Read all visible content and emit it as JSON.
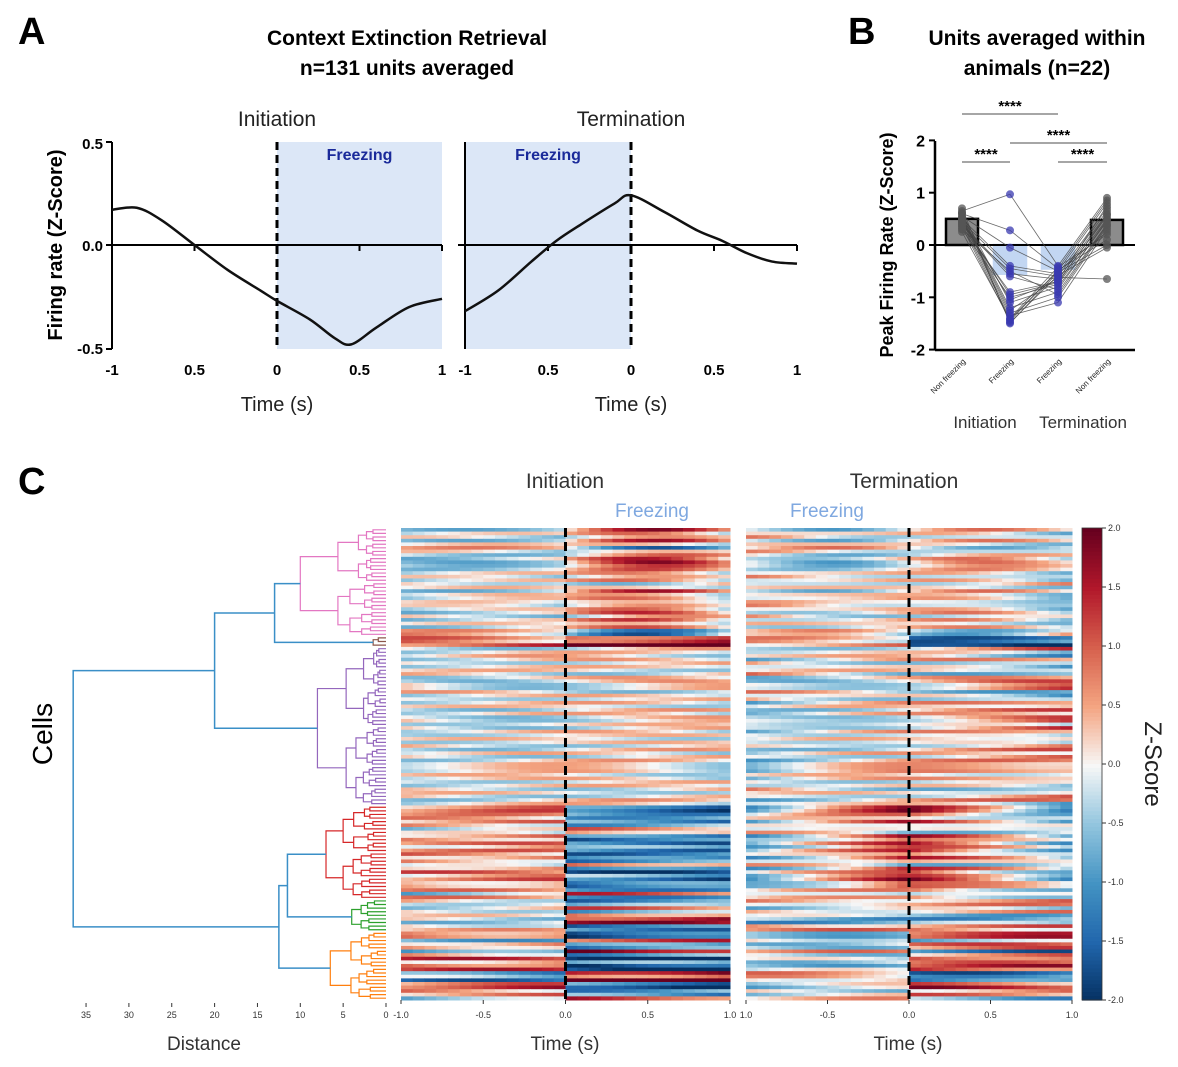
{
  "panel_labels": {
    "a": "A",
    "b": "B",
    "c": "C"
  },
  "chart_data": [
    {
      "type": "line",
      "panel": "A",
      "title": "Context Extinction Retrieval",
      "subtitle": "n=131 units averaged",
      "ylabel": "Firing rate (Z-Score)",
      "ylim": [
        -0.5,
        0.5
      ],
      "yticks": [
        "0.5",
        "0.0",
        "-0.5"
      ],
      "shade_label": "Freezing",
      "shade_color": "#dce7f7",
      "subplots": [
        {
          "name": "Initiation",
          "xlabel": "Time (s)",
          "xticks": [
            "-1",
            "0.5",
            "0",
            "0.5",
            "1"
          ],
          "shade": [
            0,
            1
          ],
          "x": [
            -1,
            -0.85,
            -0.7,
            -0.5,
            -0.3,
            -0.1,
            0,
            0.2,
            0.35,
            0.45,
            0.6,
            0.8,
            1
          ],
          "y": [
            0.17,
            0.18,
            0.12,
            0.0,
            -0.12,
            -0.22,
            -0.27,
            -0.36,
            -0.45,
            -0.48,
            -0.4,
            -0.3,
            -0.26
          ]
        },
        {
          "name": "Termination",
          "xlabel": "Time (s)",
          "xticks": [
            "-1",
            "0.5",
            "0",
            "0.5",
            "1"
          ],
          "shade": [
            -1,
            0
          ],
          "x": [
            -1,
            -0.8,
            -0.6,
            -0.45,
            -0.3,
            -0.1,
            0,
            0.2,
            0.4,
            0.55,
            0.7,
            0.85,
            1
          ],
          "y": [
            -0.32,
            -0.22,
            -0.08,
            0.02,
            0.1,
            0.2,
            0.24,
            0.16,
            0.07,
            0.02,
            -0.04,
            -0.08,
            -0.09
          ]
        }
      ]
    },
    {
      "type": "bar",
      "panel": "B",
      "title": "Units averaged within",
      "subtitle": "animals (n=22)",
      "ylabel": "Peak Firing Rate (Z-Score)",
      "ylim": [
        -2,
        2
      ],
      "yticks": [
        "2",
        "1",
        "0",
        "-1",
        "-2"
      ],
      "categories": [
        "Non freezing",
        "Freezing",
        "Freezing",
        "Non freezing"
      ],
      "groups": [
        "Initiation",
        "Termination"
      ],
      "values": [
        0.5,
        -0.55,
        -0.45,
        0.48
      ],
      "colors": [
        "#8c8c8c",
        "#b8d0f0",
        "#b8d0f0",
        "#8c8c8c"
      ],
      "points": [
        [
          0.65,
          0.6,
          0.55,
          0.5,
          0.45,
          0.4,
          0.35,
          0.3,
          0.6,
          0.55,
          0.5,
          0.45,
          0.4,
          0.35,
          0.7,
          0.62,
          0.52,
          0.48,
          0.42,
          0.38,
          0.3,
          0.25
        ],
        [
          0.97,
          0.28,
          -0.05,
          -0.4,
          -0.45,
          -0.55,
          -0.9,
          -1.0,
          -1.1,
          -1.2,
          -1.3,
          -1.35,
          -1.4,
          -1.45,
          -1.5,
          -1.48,
          -1.25,
          -1.05,
          -0.95,
          -0.6,
          -0.5,
          -1.42
        ],
        [
          -0.4,
          -0.45,
          -0.5,
          -0.55,
          -0.6,
          -0.65,
          -0.7,
          -0.75,
          -0.8,
          -0.9,
          -1.0,
          -1.1,
          -0.42,
          -0.48,
          -0.52,
          -0.58,
          -0.62,
          -0.68,
          -0.72,
          -0.85,
          -0.95,
          -0.5
        ],
        [
          0.9,
          0.85,
          0.8,
          0.7,
          0.65,
          0.6,
          0.55,
          0.5,
          0.45,
          0.4,
          0.35,
          0.3,
          0.2,
          0.1,
          0.0,
          -0.05,
          -0.65,
          0.75,
          0.58,
          0.48,
          0.38,
          0.25
        ]
      ],
      "significance": [
        {
          "pair": [
            0,
            1
          ],
          "label": "****"
        },
        {
          "pair": [
            2,
            3
          ],
          "label": "****"
        },
        {
          "pair": [
            0,
            2
          ],
          "label": "****"
        },
        {
          "pair": [
            1,
            3
          ],
          "label": "****"
        }
      ]
    },
    {
      "type": "heatmap",
      "panel": "C",
      "ylabel": "Cells",
      "rows": 131,
      "subplots": [
        {
          "name": "Initiation",
          "xlabel": "Time (s)",
          "xticks": [
            "-1.0",
            "-0.5",
            "0.0",
            "0.5",
            "1.0"
          ],
          "shade_label": "Freezing"
        },
        {
          "name": "Termination",
          "xlabel": "Time (s)",
          "xticks": [
            "1.0",
            "-0.5",
            "0.0",
            "0.5",
            "1.0"
          ],
          "shade_label": "Freezing"
        }
      ],
      "colorbar": {
        "label": "Z-Score",
        "range": [
          -2,
          2
        ],
        "ticks": [
          "2.0",
          "1.5",
          "1.0",
          "0.5",
          "0.0",
          "-0.5",
          "-1.0",
          "-1.5",
          "-2.0"
        ],
        "colormap": "RdBu_r"
      },
      "dendrogram": {
        "xlabel": "Distance",
        "xticks": [
          "35",
          "30",
          "25",
          "20",
          "15",
          "10",
          "5",
          "0"
        ],
        "link_color": "#3a8fc7",
        "clusters": [
          {
            "color": "#e377c2",
            "rows": 30,
            "init_profile": "increase after onset",
            "term_profile": "mixed"
          },
          {
            "color": "#8c564b",
            "rows": 3,
            "init_profile": "strong increase after onset",
            "term_profile": "decrease"
          },
          {
            "color": "#9467bd",
            "rows": 44,
            "init_profile": "flat",
            "term_profile": "slight increase"
          },
          {
            "color": "#d62728",
            "rows": 26,
            "init_profile": "decrease after onset",
            "term_profile": "increase around offset"
          },
          {
            "color": "#2ca02c",
            "rows": 9,
            "init_profile": "decrease",
            "term_profile": "increase"
          },
          {
            "color": "#ff7f0e",
            "rows": 19,
            "init_profile": "increase before, decrease after",
            "term_profile": "increase after offset"
          }
        ]
      }
    }
  ]
}
